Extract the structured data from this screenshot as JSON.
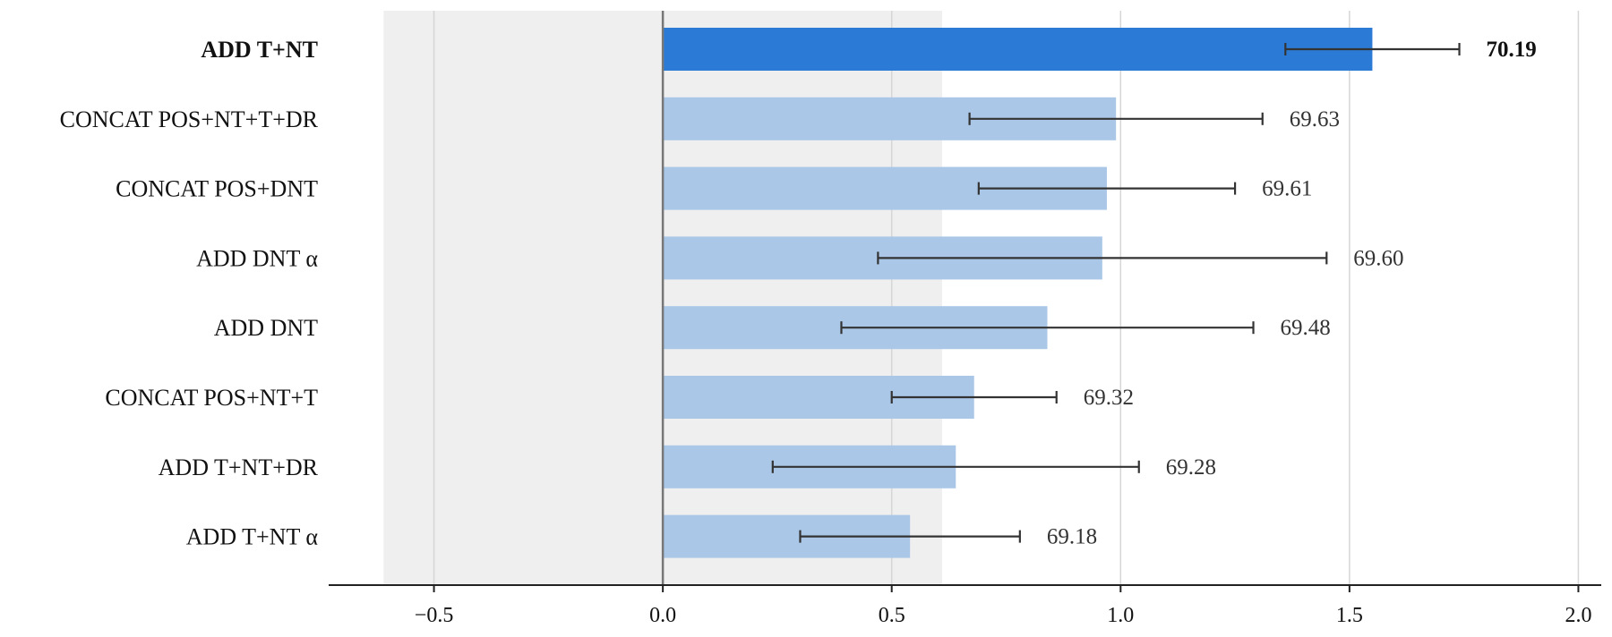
{
  "chart_data": {
    "type": "bar",
    "orientation": "horizontal",
    "categories": [
      "ADD T+NT",
      "CONCAT POS+NT+T+DR",
      "CONCAT POS+DNT",
      "ADD DNT α",
      "ADD DNT",
      "CONCAT POS+NT+T",
      "ADD T+NT+DR",
      "ADD T+NT α"
    ],
    "values": [
      1.55,
      0.99,
      0.97,
      0.96,
      0.84,
      0.68,
      0.64,
      0.54
    ],
    "error_low": [
      1.36,
      0.67,
      0.69,
      0.47,
      0.39,
      0.5,
      0.24,
      0.3
    ],
    "error_high": [
      1.74,
      1.31,
      1.25,
      1.45,
      1.29,
      0.86,
      1.04,
      0.78
    ],
    "value_labels": [
      "70.19",
      "69.63",
      "69.61",
      "69.60",
      "69.48",
      "69.32",
      "69.28",
      "69.18"
    ],
    "highlight_index": 0,
    "xlim": [
      -0.73,
      2.05
    ],
    "xticks": [
      -0.5,
      0.0,
      0.5,
      1.0,
      1.5,
      2.0
    ],
    "xtick_labels": [
      "−0.5",
      "0.0",
      "0.5",
      "1.0",
      "1.5",
      "2.0"
    ],
    "shaded_band": [
      -0.61,
      0.61
    ],
    "grid": true,
    "title": "",
    "xlabel": "",
    "ylabel": "",
    "colors": {
      "highlight_bar": "#2b7bd6",
      "bar": "#aac7e8",
      "band": "#efefef",
      "grid": "#d6d6d6",
      "zero_line": "#777777",
      "error_bar": "#333333",
      "axis": "#222222"
    }
  }
}
